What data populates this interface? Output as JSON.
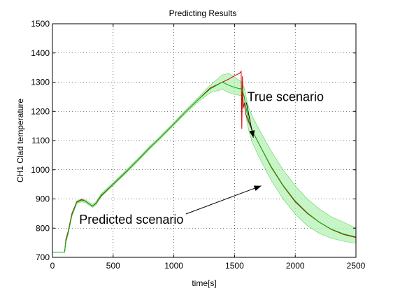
{
  "chart_data": {
    "type": "line",
    "title": "Predicting Results",
    "xlabel": "time[s]",
    "ylabel": "CH1  Clad temperature",
    "xlim": [
      0,
      2500
    ],
    "ylim": [
      700,
      1500
    ],
    "xticks": [
      0,
      500,
      1000,
      1500,
      2000,
      2500
    ],
    "yticks": [
      700,
      800,
      900,
      1000,
      1100,
      1200,
      1300,
      1400,
      1500
    ],
    "grid": true,
    "series": [
      {
        "color": "#cc0000",
        "x": [
          0,
          100,
          110,
          130,
          160,
          200,
          240,
          270,
          300,
          330,
          360,
          400,
          500,
          600,
          700,
          800,
          900,
          1000,
          1100,
          1200,
          1300,
          1400,
          1450,
          1500,
          1540,
          1555,
          1560,
          1565,
          1570,
          1580,
          1590,
          1600,
          1620,
          1650,
          1700,
          1800,
          1900,
          2000,
          2100,
          2200,
          2300,
          2400,
          2500
        ],
        "y": [
          718,
          718,
          760,
          790,
          850,
          890,
          898,
          893,
          884,
          875,
          885,
          910,
          950,
          990,
          1032,
          1075,
          1115,
          1157,
          1200,
          1240,
          1280,
          1300,
          1310,
          1322,
          1330,
          1337,
          1140,
          1320,
          1210,
          1230,
          1195,
          1180,
          1160,
          1130,
          1090,
          1010,
          945,
          890,
          850,
          820,
          795,
          778,
          768
        ]
      },
      {
        "color": "#00b000",
        "x": [
          0,
          100,
          110,
          130,
          160,
          200,
          240,
          270,
          300,
          330,
          360,
          400,
          500,
          600,
          700,
          800,
          900,
          1000,
          1100,
          1200,
          1300,
          1400,
          1450,
          1500,
          1540,
          1560,
          1580,
          1600,
          1620,
          1650,
          1700,
          1800,
          1900,
          2000,
          2100,
          2200,
          2300,
          2400,
          2500
        ],
        "y": [
          718,
          718,
          755,
          785,
          845,
          888,
          896,
          892,
          884,
          876,
          886,
          912,
          951,
          991,
          1032,
          1075,
          1115,
          1157,
          1200,
          1240,
          1277,
          1300,
          1290,
          1282,
          1278,
          1278,
          1250,
          1200,
          1165,
          1130,
          1090,
          1012,
          947,
          893,
          852,
          820,
          796,
          780,
          770
        ],
        "upper": [
          718,
          718,
          762,
          790,
          850,
          893,
          901,
          897,
          889,
          881,
          891,
          917,
          956,
          996,
          1037,
          1080,
          1120,
          1162,
          1206,
          1247,
          1290,
          1325,
          1330,
          1318,
          1305,
          1300,
          1280,
          1240,
          1210,
          1180,
          1140,
          1065,
          1000,
          945,
          900,
          865,
          838,
          820,
          800
        ],
        "lower": [
          718,
          718,
          748,
          780,
          840,
          883,
          891,
          887,
          879,
          871,
          881,
          907,
          946,
          986,
          1027,
          1070,
          1110,
          1152,
          1194,
          1233,
          1264,
          1275,
          1265,
          1258,
          1255,
          1255,
          1225,
          1170,
          1130,
          1090,
          1045,
          965,
          900,
          848,
          808,
          782,
          765,
          755,
          748
        ]
      }
    ],
    "annotations": [
      {
        "text": "True scenario",
        "x": 1920,
        "y": 1235,
        "arrow_to": [
          1655,
          1110
        ]
      },
      {
        "text": "Predicted scenario",
        "x": 650,
        "y": 815,
        "arrow_to": [
          1720,
          945
        ]
      }
    ]
  }
}
